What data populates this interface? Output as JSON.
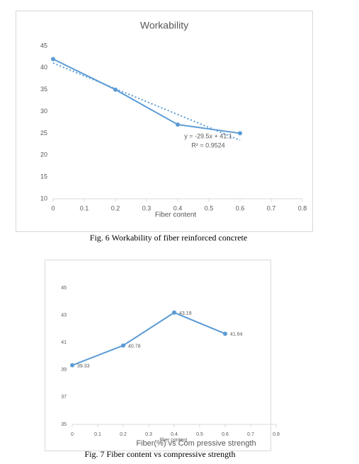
{
  "chart_data": [
    {
      "type": "line",
      "title": "Workability",
      "x_label": "Fiber content",
      "x": [
        0,
        0.2,
        0.4,
        0.6
      ],
      "values": [
        42,
        35,
        27,
        25
      ],
      "color": "#5b9bd5",
      "xlim": [
        0,
        0.8
      ],
      "xticks": [
        0,
        0.1,
        0.2,
        0.3,
        0.4,
        0.5,
        0.6,
        0.7,
        0.8
      ],
      "ylim": [
        10,
        45
      ],
      "yticks": [
        10,
        15,
        20,
        25,
        30,
        35,
        40,
        45
      ],
      "trendline": {
        "slope": -29.5,
        "intercept": 41.1,
        "equation": "y = -29.5x + 41.1",
        "r_squared_label": "R² = 0.9524"
      }
    },
    {
      "type": "line",
      "title": "Fiber(%) vs Com pressive strength",
      "x_label": "fiber content",
      "x": [
        0,
        0.2,
        0.4,
        0.6
      ],
      "values": [
        39.33,
        40.78,
        43.19,
        41.64
      ],
      "color": "#5b9bd5",
      "data_labels": true,
      "xlim": [
        0,
        0.8
      ],
      "xticks": [
        0,
        0.1,
        0.2,
        0.3,
        0.4,
        0.5,
        0.6,
        0.7,
        0.8
      ],
      "ylim": [
        35,
        45
      ],
      "yticks": [
        35,
        37,
        39,
        41,
        43,
        45
      ]
    }
  ],
  "figure_captions": [
    "Fig. 6 Workability of fiber reinforced concrete",
    "Fig. 7 Fiber content vs compressive strength"
  ]
}
